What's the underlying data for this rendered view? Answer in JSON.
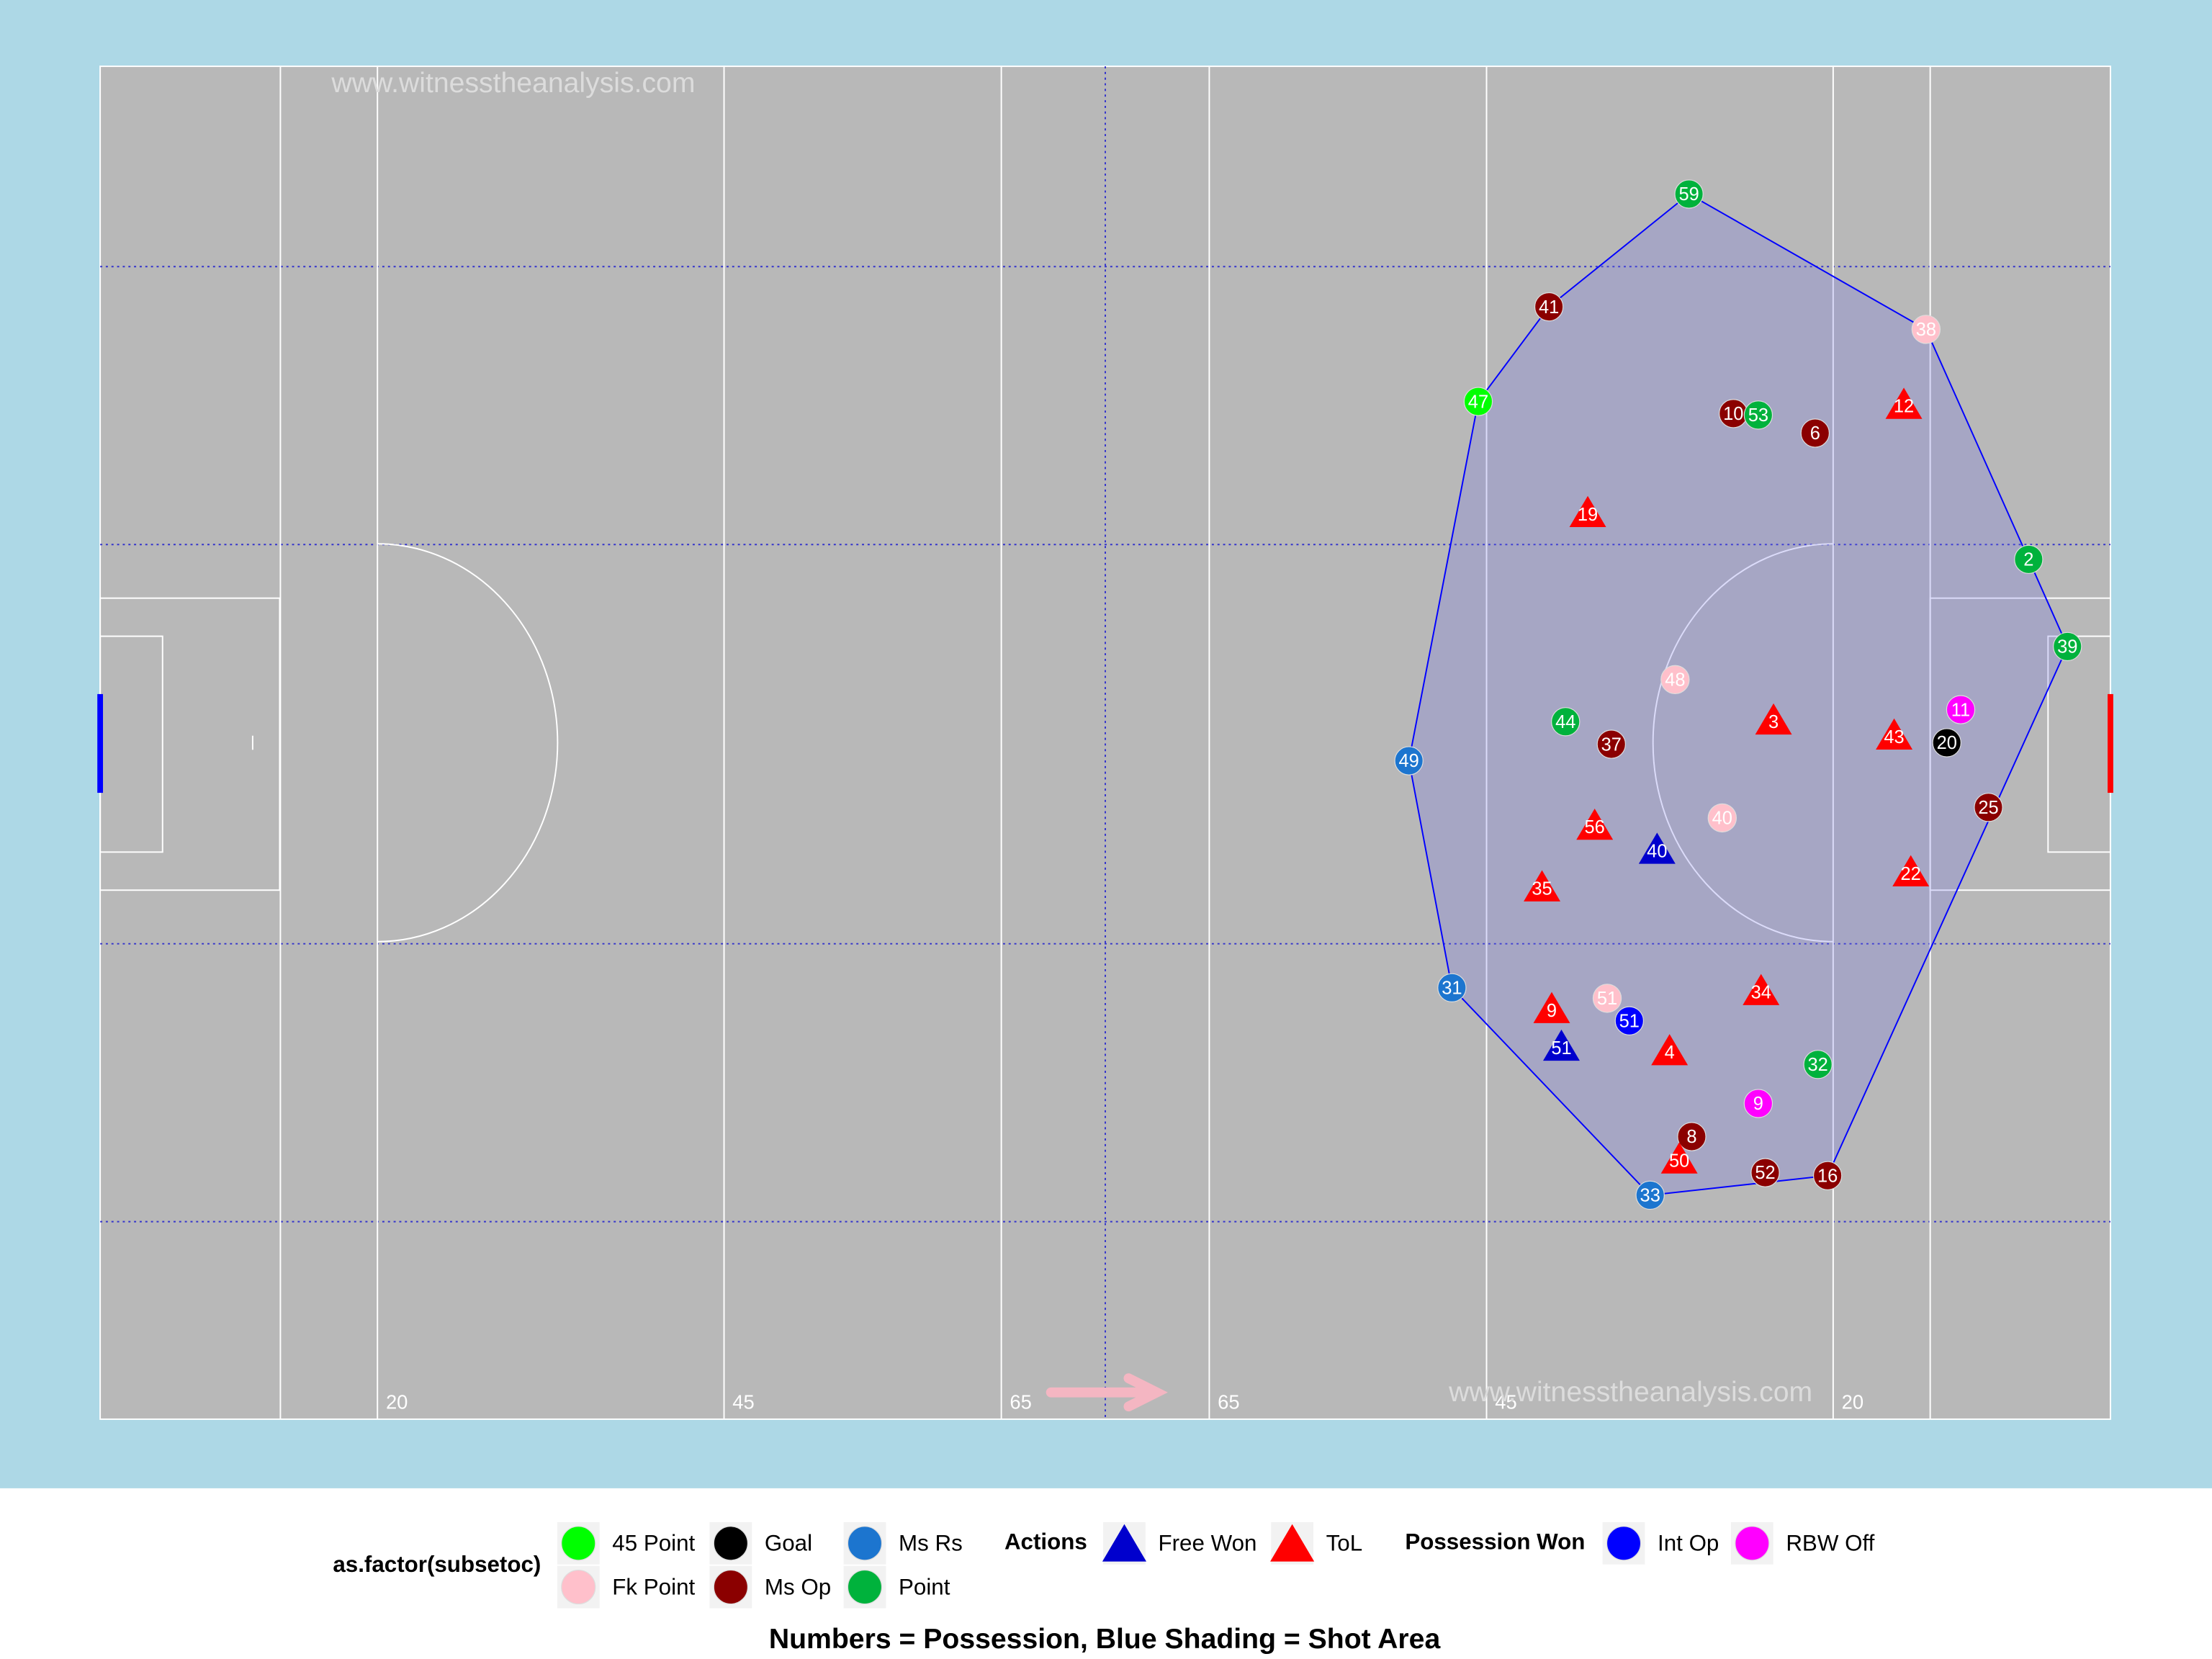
{
  "chart_data": {
    "type": "scatter",
    "watermarks": [
      "www.witnesstheanalysis.com",
      "www.witnesstheanalysis.com"
    ],
    "caption": "Numbers = Possession, Blue Shading = Shot Area",
    "xlim": [
      0,
      145
    ],
    "ylim": [
      0,
      90
    ],
    "xticks": [
      20,
      45,
      65,
      {
        "value": 80,
        "label": "65"
      },
      {
        "value": 100,
        "label": "45"
      },
      {
        "value": 125,
        "label": "20"
      }
    ],
    "groups": [
      {
        "title": "as.factor(subsetoc)",
        "series": [
          {
            "name": "45 Point",
            "color": "#00ff00",
            "shape": "circle",
            "x": [
              99.4
            ],
            "values": [
              67.7
            ],
            "labels": [
              47
            ]
          },
          {
            "name": "Fk Point",
            "color": "#ffc0cb",
            "shape": "circle",
            "x": [
              131.7,
              113.6,
              117.0,
              108.7
            ],
            "values": [
              72.5,
              49.2,
              40.0,
              28.0
            ],
            "labels": [
              38,
              48,
              40,
              51
            ]
          },
          {
            "name": "Goal",
            "color": "#000000",
            "shape": "circle",
            "x": [
              133.2
            ],
            "values": [
              45.0
            ],
            "labels": [
              20
            ]
          },
          {
            "name": "Ms Op",
            "color": "#8b0000",
            "shape": "circle",
            "x": [
              104.5,
              117.8,
              123.7,
              109.0,
              136.2,
              114.8,
              120.1,
              124.6
            ],
            "values": [
              74.0,
              66.9,
              65.6,
              44.9,
              40.7,
              18.8,
              16.4,
              16.2
            ],
            "labels": [
              41,
              10,
              6,
              37,
              25,
              8,
              52,
              16
            ]
          },
          {
            "name": "Ms Rs",
            "color": "#1c75cf",
            "shape": "circle",
            "x": [
              94.4,
              97.5,
              111.8
            ],
            "values": [
              43.8,
              28.7,
              14.9
            ],
            "labels": [
              49,
              31,
              33
            ]
          },
          {
            "name": "Point",
            "color": "#00b23c",
            "shape": "circle",
            "x": [
              114.6,
              119.6,
              139.1,
              141.9,
              105.7,
              123.9
            ],
            "values": [
              81.5,
              66.8,
              57.2,
              51.4,
              46.4,
              23.6
            ],
            "labels": [
              59,
              53,
              2,
              39,
              44,
              32
            ]
          }
        ]
      },
      {
        "title": "Actions",
        "series": [
          {
            "name": "Free Won",
            "color": "#0000cd",
            "shape": "triangle",
            "x": [
              112.3,
              105.4
            ],
            "values": [
              37.8,
              24.7
            ],
            "labels": [
              40,
              51
            ]
          },
          {
            "name": "ToL",
            "color": "#ff0000",
            "shape": "triangle",
            "x": [
              130.1,
              107.3,
              120.7,
              129.4,
              107.8,
              130.6,
              104.0,
              104.7,
              119.8,
              113.2,
              113.9
            ],
            "values": [
              67.4,
              60.2,
              46.4,
              45.4,
              39.4,
              36.3,
              35.3,
              27.2,
              28.4,
              24.4,
              17.2
            ],
            "labels": [
              12,
              19,
              3,
              43,
              56,
              22,
              35,
              9,
              34,
              4,
              50
            ]
          }
        ]
      },
      {
        "title": "Possession Won",
        "series": [
          {
            "name": "Int Op",
            "color": "#0000ff",
            "shape": "circle",
            "x": [
              110.3
            ],
            "values": [
              26.5
            ],
            "labels": [
              51
            ]
          },
          {
            "name": "RBW Off",
            "color": "#ff00ff",
            "shape": "circle",
            "x": [
              119.6,
              134.2
            ],
            "values": [
              21.0,
              47.2
            ],
            "labels": [
              9,
              11
            ]
          }
        ]
      }
    ]
  }
}
